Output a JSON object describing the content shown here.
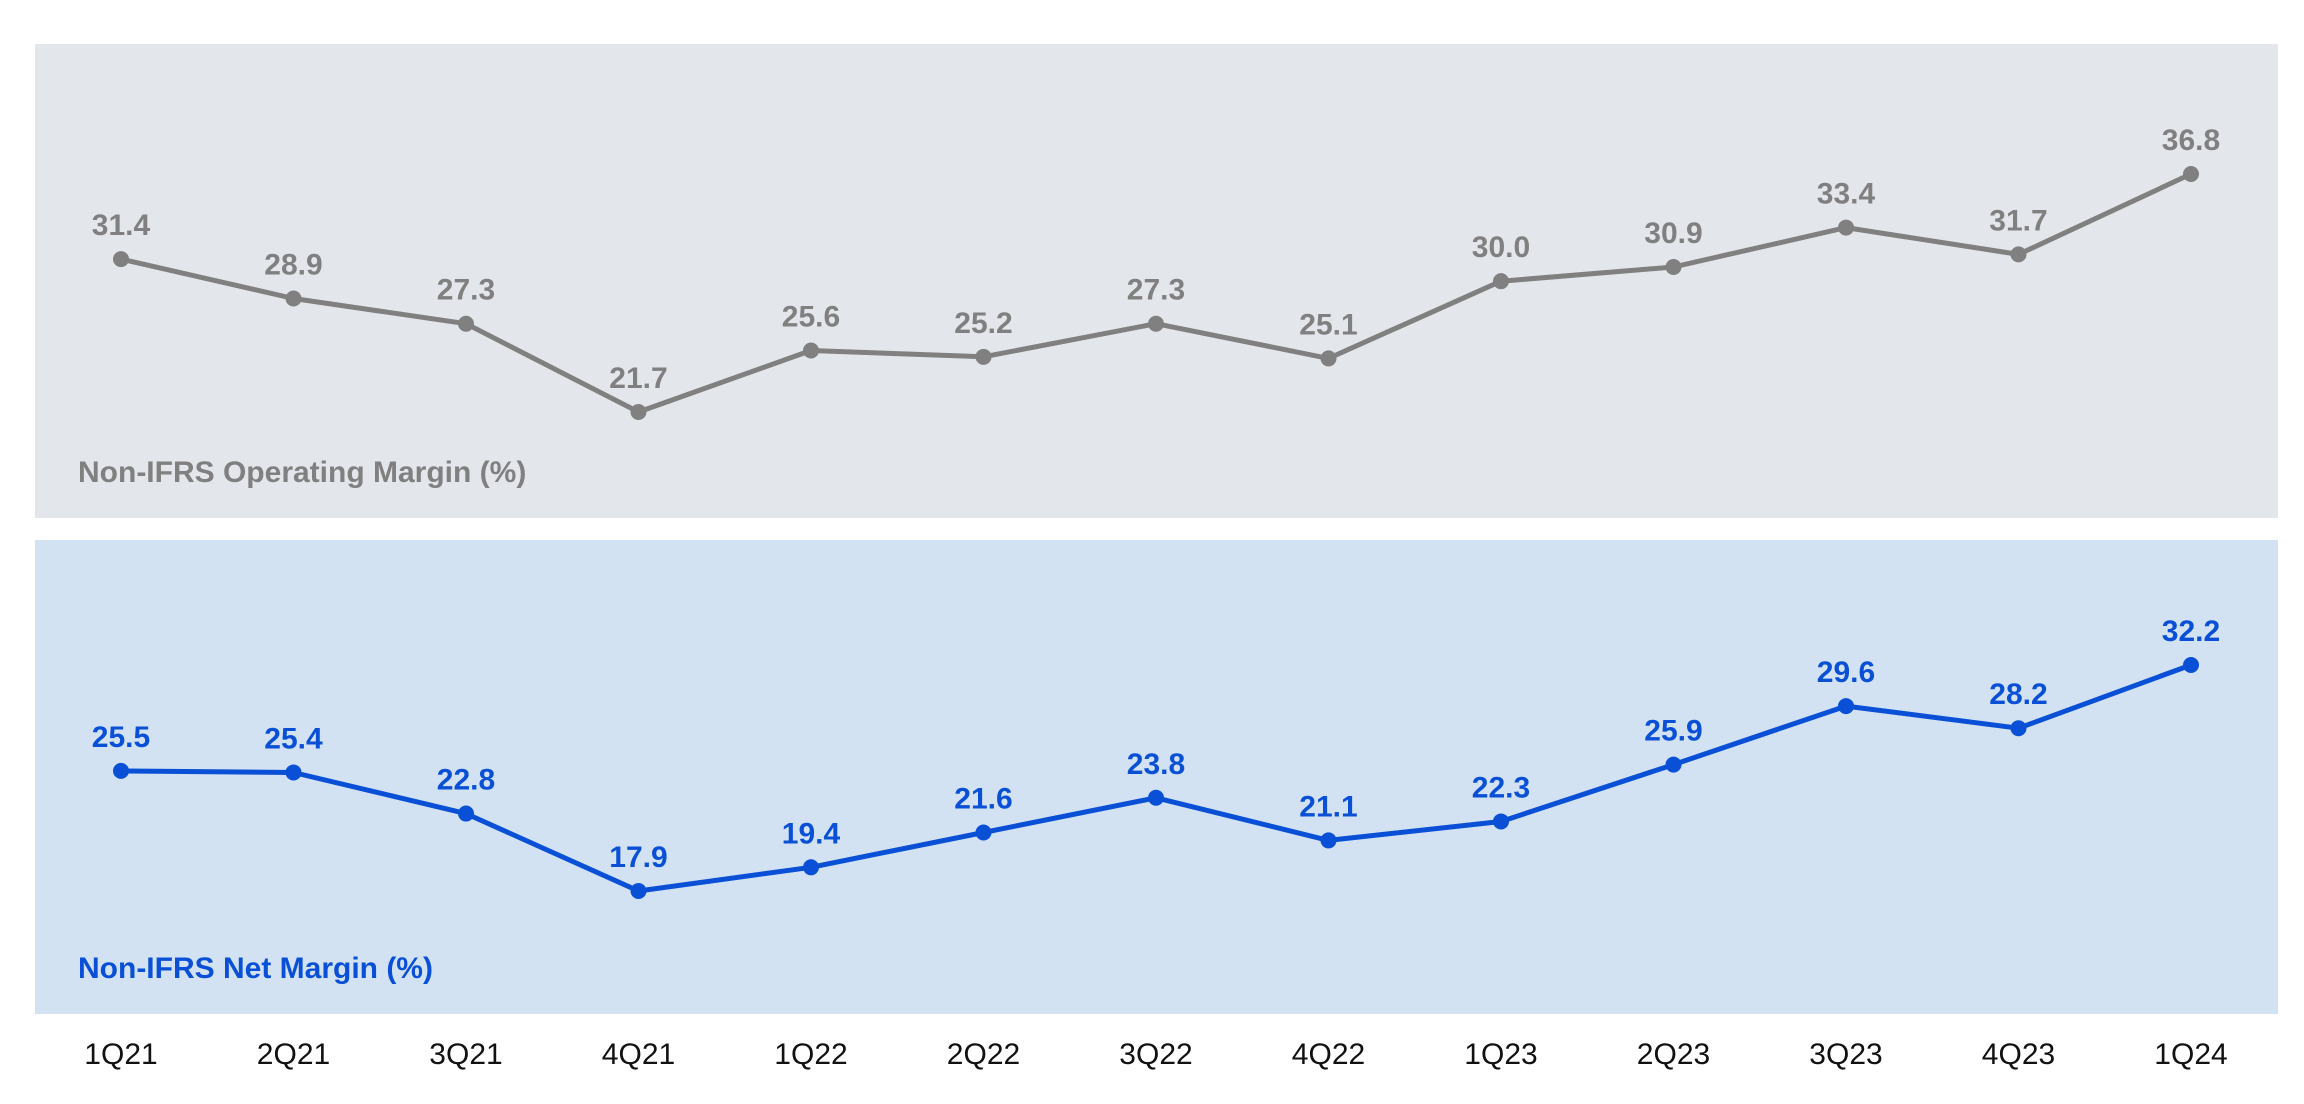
{
  "chart_data": {
    "type": "line",
    "categories": [
      "1Q21",
      "2Q21",
      "3Q21",
      "4Q21",
      "1Q22",
      "2Q22",
      "3Q22",
      "4Q22",
      "1Q23",
      "2Q23",
      "3Q23",
      "4Q23",
      "1Q24"
    ],
    "series": [
      {
        "name": "Non-IFRS Operating Margin (%)",
        "values": [
          31.4,
          28.9,
          27.3,
          21.7,
          25.6,
          25.2,
          27.3,
          25.1,
          30.0,
          30.9,
          33.4,
          31.7,
          36.8
        ],
        "labels": [
          "31.4",
          "28.9",
          "27.3",
          "21.7",
          "25.6",
          "25.2",
          "27.3",
          "25.1",
          "30.0",
          "30.9",
          "33.4",
          "31.7",
          "36.8"
        ],
        "color": "#808080",
        "panel_color": "#e3e6eb"
      },
      {
        "name": "Non-IFRS Net Margin (%)",
        "values": [
          25.5,
          25.4,
          22.8,
          17.9,
          19.4,
          21.6,
          23.8,
          21.1,
          22.3,
          25.9,
          29.6,
          28.2,
          32.2
        ],
        "labels": [
          "25.5",
          "25.4",
          "22.8",
          "17.9",
          "19.4",
          "21.6",
          "23.8",
          "21.1",
          "22.3",
          "25.9",
          "29.6",
          "28.2",
          "32.2"
        ],
        "color": "#0a50d6",
        "panel_color": "#d2e2f2"
      }
    ],
    "grid": false,
    "legend": "bottom-left of each panel"
  }
}
